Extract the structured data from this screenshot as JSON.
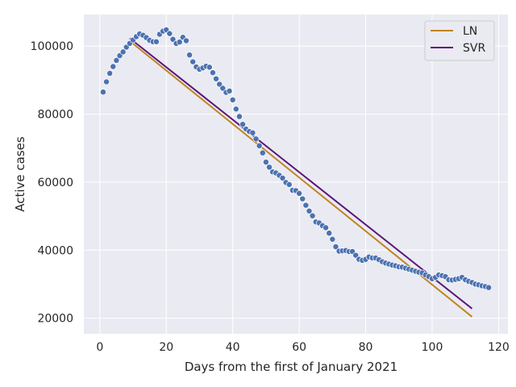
{
  "chart_data": {
    "type": "line",
    "title": "",
    "xlabel": "Days from the first of January 2021",
    "ylabel": "Active cases",
    "xlim": [
      -4.8,
      122.8
    ],
    "ylim": [
      15400,
      109300
    ],
    "xticks": [
      0,
      20,
      40,
      60,
      80,
      100,
      120
    ],
    "xtick_labels": [
      "0",
      "20",
      "40",
      "60",
      "80",
      "100",
      "120"
    ],
    "yticks": [
      20000,
      40000,
      60000,
      80000,
      100000
    ],
    "ytick_labels": [
      "20000",
      "40000",
      "60000",
      "80000",
      "100000"
    ],
    "grid": true,
    "background": "#eaeaf2",
    "legend_position": "top-right",
    "series": [
      {
        "name": "LN",
        "kind": "line",
        "color": "#c08420",
        "x": [
          9,
          112
        ],
        "y": [
          101500,
          20400
        ]
      },
      {
        "name": "SVR",
        "kind": "line",
        "color": "#59167a",
        "x": [
          9,
          112
        ],
        "y": [
          102300,
          22800
        ]
      },
      {
        "kind": "scatter",
        "color": "#4c72b0",
        "x": [
          1,
          2,
          3,
          4,
          5,
          6,
          7,
          8,
          9,
          10,
          11,
          12,
          13,
          14,
          15,
          16,
          17,
          18,
          19,
          20,
          21,
          22,
          23,
          24,
          25,
          26,
          27,
          28,
          29,
          30,
          31,
          32,
          33,
          34,
          35,
          36,
          37,
          38,
          39,
          40,
          41,
          42,
          43,
          44,
          45,
          46,
          47,
          48,
          49,
          50,
          51,
          52,
          53,
          54,
          55,
          56,
          57,
          58,
          59,
          60,
          61,
          62,
          63,
          64,
          65,
          66,
          67,
          68,
          69,
          70,
          71,
          72,
          73,
          74,
          75,
          76,
          77,
          78,
          79,
          80,
          81,
          82,
          83,
          84,
          85,
          86,
          87,
          88,
          89,
          90,
          91,
          92,
          93,
          94,
          95,
          96,
          97,
          98,
          99,
          100,
          101,
          102,
          103,
          104,
          105,
          106,
          107,
          108,
          109,
          110,
          111,
          112,
          113,
          114,
          115,
          116,
          117
        ],
        "y": [
          86500,
          89500,
          92000,
          94000,
          95800,
          97200,
          98300,
          99700,
          100800,
          101800,
          102800,
          103600,
          103200,
          102500,
          101700,
          101300,
          101300,
          103500,
          104400,
          104800,
          103700,
          102000,
          100800,
          101200,
          102600,
          101600,
          97400,
          95400,
          93900,
          93200,
          93600,
          94100,
          93800,
          92200,
          90400,
          88800,
          87600,
          86400,
          86800,
          84200,
          81500,
          79300,
          77000,
          75600,
          74900,
          74500,
          72700,
          70700,
          68600,
          65900,
          64400,
          63000,
          62700,
          62000,
          61200,
          59900,
          59300,
          57600,
          57500,
          56700,
          55100,
          53200,
          51500,
          50100,
          48300,
          48000,
          47200,
          46600,
          45000,
          43200,
          41000,
          39700,
          39800,
          39900,
          39600,
          39600,
          38500,
          37300,
          37000,
          37300,
          38000,
          37700,
          37700,
          37200,
          36600,
          36200,
          35900,
          35600,
          35400,
          35100,
          35000,
          34700,
          34400,
          34100,
          33800,
          33500,
          33300,
          32700,
          32200,
          31600,
          32000,
          32700,
          32500,
          32200,
          31300,
          31200,
          31400,
          31600,
          32000,
          31300,
          30800,
          30500,
          30000,
          29800,
          29500,
          29300,
          29000
        ]
      }
    ]
  }
}
